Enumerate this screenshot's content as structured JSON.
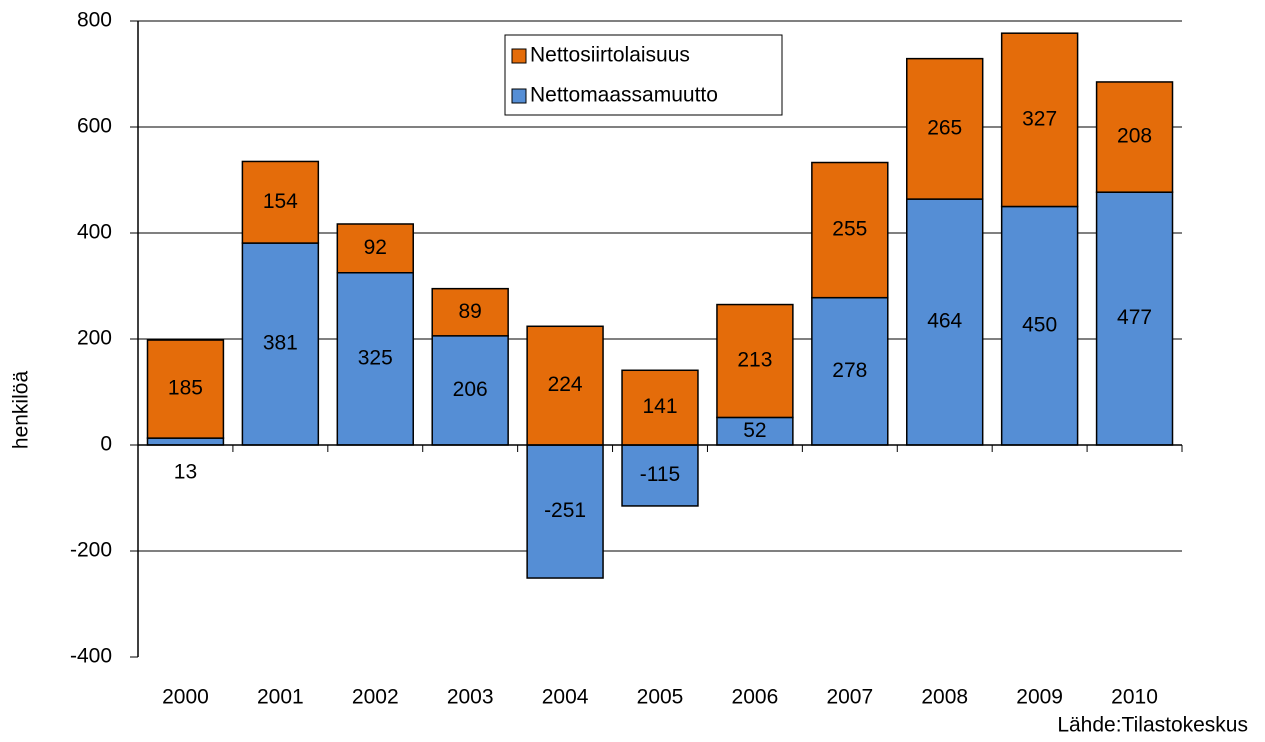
{
  "chart_data": {
    "type": "stacked_bar",
    "y_label": "henkilöä",
    "source": "Lähde:Tilastokeskus",
    "categories": [
      "2000",
      "2001",
      "2002",
      "2003",
      "2004",
      "2005",
      "2006",
      "2007",
      "2008",
      "2009",
      "2010"
    ],
    "series": [
      {
        "name": "Nettomaassamuutto",
        "color": "#558ed5",
        "values": [
          13,
          381,
          325,
          206,
          -251,
          -115,
          52,
          278,
          464,
          450,
          477
        ]
      },
      {
        "name": "Nettosiirtolaisuus",
        "color": "#e46c0a",
        "values": [
          185,
          154,
          92,
          89,
          224,
          141,
          213,
          255,
          265,
          327,
          208
        ]
      }
    ],
    "ylim": [
      -400,
      800
    ],
    "yticks": [
      -400,
      -200,
      0,
      200,
      400,
      600,
      800
    ],
    "grid": true
  }
}
